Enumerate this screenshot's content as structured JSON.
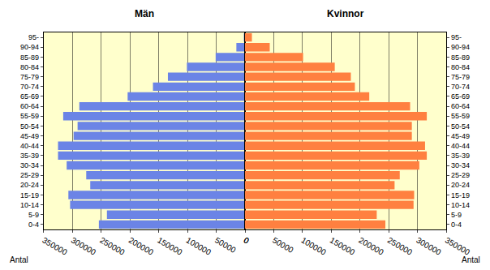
{
  "chart_data": [
    {
      "type": "bar",
      "title": "Män",
      "orientation": "horizontal",
      "color": "#6b84e6",
      "categories": [
        "0-4",
        "5-9",
        "10-14",
        "15-19",
        "20-24",
        "25-29",
        "30-34",
        "35-39",
        "40-44",
        "45-49",
        "50-54",
        "55-59",
        "60-64",
        "65-69",
        "70-74",
        "75-79",
        "80-84",
        "85-89",
        "90-94",
        "95-"
      ],
      "values": [
        254000,
        240000,
        304000,
        307000,
        269000,
        276000,
        310000,
        325000,
        325000,
        298000,
        291000,
        316000,
        288000,
        204000,
        160000,
        134000,
        101000,
        51000,
        15000,
        2000
      ],
      "xlabel": "Antal",
      "xlim": [
        350000,
        0
      ],
      "xticks": [
        350000,
        300000,
        250000,
        200000,
        150000,
        100000,
        50000,
        0
      ],
      "grid": true
    },
    {
      "type": "bar",
      "title": "Kvinnor",
      "orientation": "horizontal",
      "color": "#ff8040",
      "categories": [
        "0-4",
        "5-9",
        "10-14",
        "15-19",
        "20-24",
        "25-29",
        "30-34",
        "35-39",
        "40-44",
        "45-49",
        "50-54",
        "55-59",
        "60-64",
        "65-69",
        "70-74",
        "75-79",
        "80-84",
        "85-89",
        "90-94",
        "95-"
      ],
      "values": [
        244000,
        229000,
        293000,
        294000,
        260000,
        269000,
        303000,
        316000,
        313000,
        290000,
        290000,
        316000,
        287000,
        216000,
        191000,
        184000,
        156000,
        101000,
        43000,
        12000
      ],
      "xlabel": "Antal",
      "xlim": [
        0,
        350000
      ],
      "xticks": [
        0,
        50000,
        100000,
        150000,
        200000,
        250000,
        300000,
        350000
      ],
      "grid": true
    }
  ]
}
